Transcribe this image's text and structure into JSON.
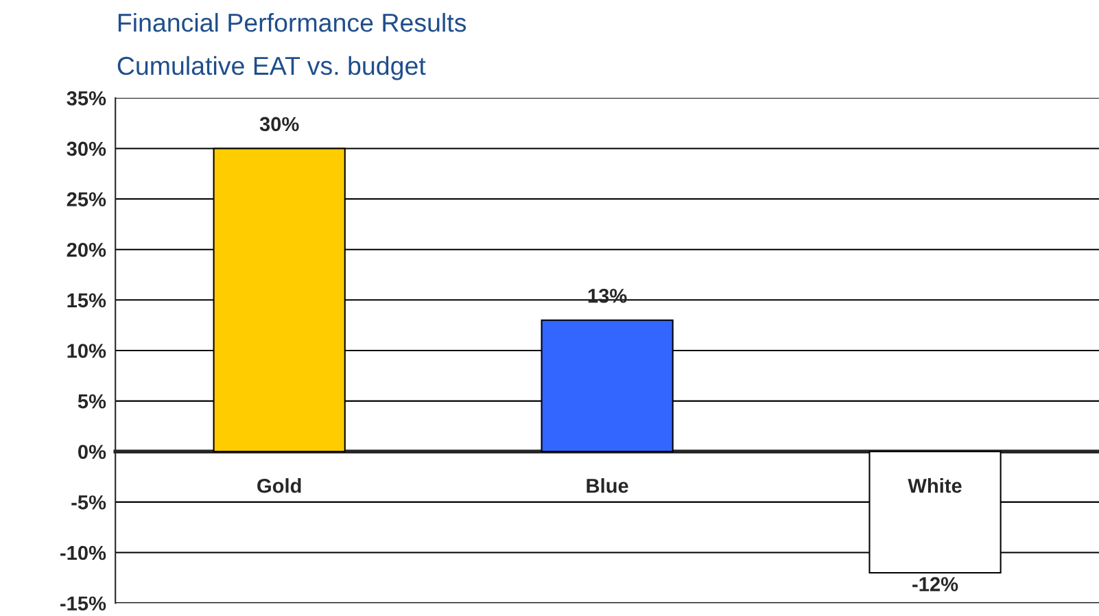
{
  "chart_data": {
    "type": "bar",
    "title": "Financial Performance Results",
    "subtitle": "Cumulative EAT vs. budget",
    "categories": [
      "Gold",
      "Blue",
      "White"
    ],
    "values": [
      30,
      13,
      -12
    ],
    "colors": [
      "#ffcc00",
      "#3366ff",
      "#ffffff"
    ],
    "value_labels": [
      "30%",
      "13%",
      "-12%"
    ],
    "ylim": [
      -15,
      35
    ],
    "yticks": [
      {
        "value": -15,
        "label": "-15%"
      },
      {
        "value": -10,
        "label": "-10%"
      },
      {
        "value": -5,
        "label": "-5%"
      },
      {
        "value": 0,
        "label": "0%"
      },
      {
        "value": 5,
        "label": "5%"
      },
      {
        "value": 10,
        "label": "10%"
      },
      {
        "value": 15,
        "label": "15%"
      },
      {
        "value": 20,
        "label": "20%"
      },
      {
        "value": 25,
        "label": "25%"
      },
      {
        "value": 30,
        "label": "30%"
      },
      {
        "value": 35,
        "label": "35%"
      }
    ],
    "grid": "y",
    "legend": false
  }
}
